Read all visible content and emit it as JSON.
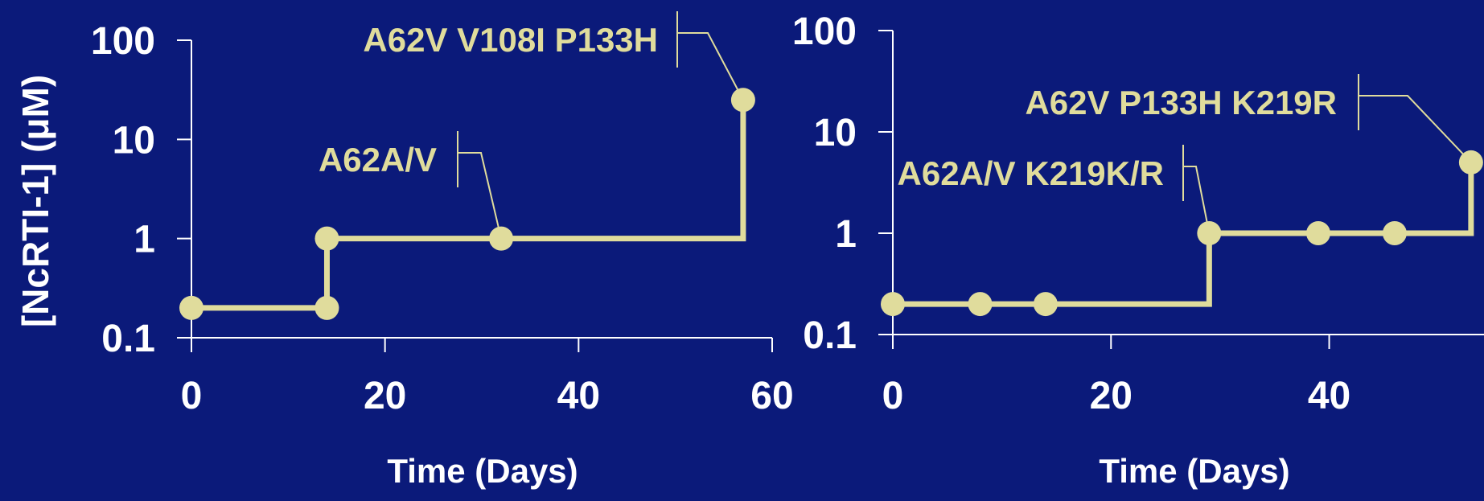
{
  "colors": {
    "background": "#0b1a7a",
    "axis": "#ffffff",
    "series": "#e0dc9c",
    "annotation": "#e0dc9c"
  },
  "ylabel": "[NcRTI-1] (μM)",
  "chart_data": [
    {
      "type": "line",
      "step": true,
      "log_y": true,
      "xlabel": "Time (Days)",
      "ylabel": "[NcRTI-1] (μM)",
      "xlim": [
        0,
        60
      ],
      "ylim": [
        0.1,
        100
      ],
      "x_ticks": [
        "0",
        "20",
        "40",
        "60"
      ],
      "y_ticks": [
        "0.1",
        "1",
        "10",
        "100"
      ],
      "series": [
        {
          "points": [
            [
              0,
              0.2
            ],
            [
              14,
              0.2
            ],
            [
              14,
              1
            ],
            [
              32,
              1
            ],
            [
              57,
              25
            ]
          ]
        }
      ],
      "annotations": [
        {
          "text": "A62A/V",
          "target_x": 32,
          "target_y": 1
        },
        {
          "text": "A62V V108I P133H",
          "target_x": 57,
          "target_y": 25
        }
      ]
    },
    {
      "type": "line",
      "step": true,
      "log_y": true,
      "xlabel": "Time (Days)",
      "xlim": [
        0,
        55
      ],
      "ylim": [
        0.1,
        100
      ],
      "x_ticks": [
        "0",
        "20",
        "40"
      ],
      "y_ticks": [
        "0.1",
        "1",
        "10",
        "100"
      ],
      "series": [
        {
          "points": [
            [
              0,
              0.2
            ],
            [
              8,
              0.2
            ],
            [
              14,
              0.2
            ],
            [
              29,
              1
            ],
            [
              39,
              1
            ],
            [
              46,
              1
            ],
            [
              53,
              5
            ]
          ]
        }
      ],
      "annotations": [
        {
          "text": "A62A/V K219K/R",
          "target_x": 29,
          "target_y": 1
        },
        {
          "text": "A62V P133H K219R",
          "target_x": 53,
          "target_y": 5
        }
      ]
    }
  ]
}
